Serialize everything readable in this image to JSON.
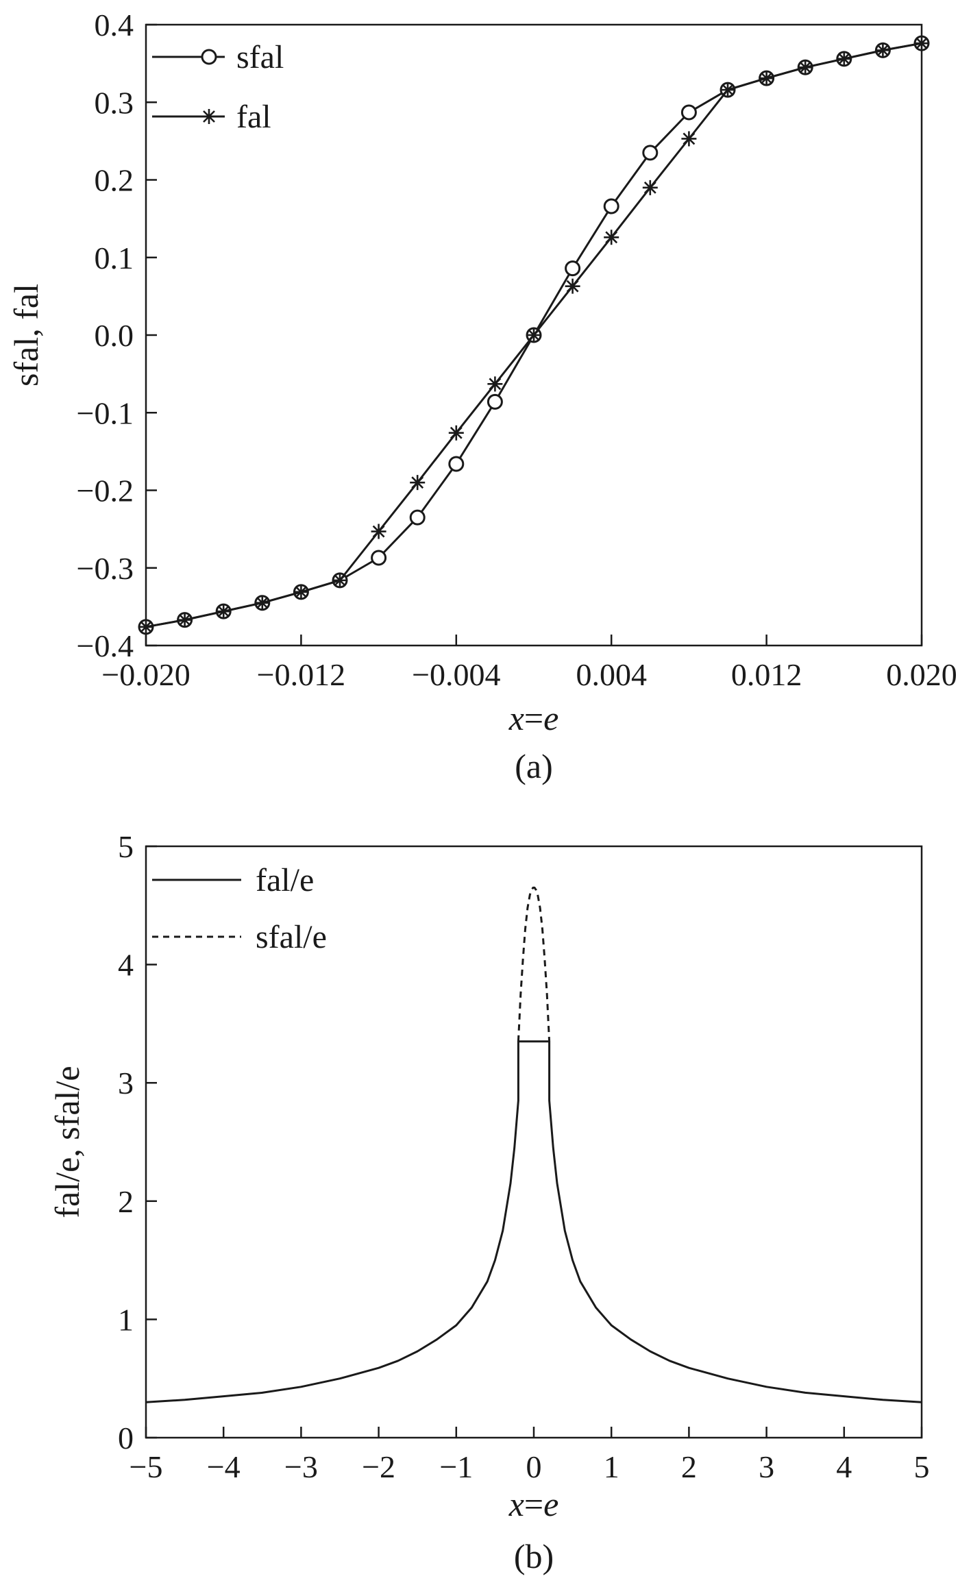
{
  "chart_data": [
    {
      "type": "line",
      "caption": "(a)",
      "xlabel_parts": [
        "x",
        "=",
        "e"
      ],
      "ylabel": "sfal, fal",
      "xlim": [
        -0.02,
        0.02
      ],
      "ylim": [
        -0.4,
        0.4
      ],
      "xticks": [
        -0.02,
        -0.012,
        -0.004,
        0.004,
        0.012,
        0.02
      ],
      "xtick_labels": [
        "−0.020",
        "−0.012",
        "−0.004",
        "0.004",
        "0.012",
        "0.020"
      ],
      "yticks": [
        -0.4,
        -0.3,
        -0.2,
        -0.1,
        0.0,
        0.1,
        0.2,
        0.3,
        0.4
      ],
      "ytick_labels": [
        "−0.4",
        "−0.3",
        "−0.2",
        "−0.1",
        "0.0",
        "0.1",
        "0.2",
        "0.3",
        "0.4"
      ],
      "grid": false,
      "legend_position": "top-left",
      "series": [
        {
          "name": "sfal",
          "marker": "circle",
          "x": [
            -0.02,
            -0.018,
            -0.016,
            -0.014,
            -0.012,
            -0.01,
            -0.008,
            -0.006,
            -0.004,
            -0.002,
            0.0,
            0.002,
            0.004,
            0.006,
            0.008,
            0.01,
            0.012,
            0.014,
            0.016,
            0.018,
            0.02
          ],
          "y": [
            -0.376,
            -0.367,
            -0.356,
            -0.345,
            -0.331,
            -0.316,
            -0.287,
            -0.235,
            -0.166,
            -0.086,
            0.0,
            0.086,
            0.166,
            0.235,
            0.287,
            0.316,
            0.331,
            0.345,
            0.356,
            0.367,
            0.376
          ]
        },
        {
          "name": "fal",
          "marker": "asterisk",
          "x": [
            -0.02,
            -0.018,
            -0.016,
            -0.014,
            -0.012,
            -0.01,
            -0.008,
            -0.006,
            -0.004,
            -0.002,
            0.0,
            0.002,
            0.004,
            0.006,
            0.008,
            0.01,
            0.012,
            0.014,
            0.016,
            0.018,
            0.02
          ],
          "y": [
            -0.376,
            -0.367,
            -0.356,
            -0.345,
            -0.331,
            -0.316,
            -0.253,
            -0.19,
            -0.126,
            -0.063,
            0.0,
            0.063,
            0.126,
            0.19,
            0.253,
            0.316,
            0.331,
            0.345,
            0.356,
            0.367,
            0.376
          ]
        }
      ]
    },
    {
      "type": "line",
      "caption": "(b)",
      "xlabel_parts": [
        "x",
        "=",
        "e"
      ],
      "ylabel": "fal/e, sfal/e",
      "xlim": [
        -5,
        5
      ],
      "ylim": [
        0,
        5
      ],
      "xticks": [
        -5,
        -4,
        -3,
        -2,
        -1,
        0,
        1,
        2,
        3,
        4,
        5
      ],
      "xtick_labels": [
        "−5",
        "−4",
        "−3",
        "−2",
        "−1",
        "0",
        "1",
        "2",
        "3",
        "4",
        "5"
      ],
      "yticks": [
        0,
        1,
        2,
        3,
        4,
        5
      ],
      "ytick_labels": [
        "0",
        "1",
        "2",
        "3",
        "4",
        "5"
      ],
      "grid": false,
      "legend_position": "top-left",
      "series": [
        {
          "name": "fal/e",
          "style": "solid",
          "x": [
            -5,
            -4.5,
            -4,
            -3.5,
            -3,
            -2.5,
            -2,
            -1.75,
            -1.5,
            -1.25,
            -1,
            -0.8,
            -0.6,
            -0.5,
            -0.4,
            -0.3,
            -0.25,
            -0.2,
            -0.2,
            0.2,
            0.2,
            0.25,
            0.3,
            0.4,
            0.5,
            0.6,
            0.8,
            1,
            1.25,
            1.5,
            1.75,
            2,
            2.5,
            3,
            3.5,
            4,
            4.5,
            5
          ],
          "y": [
            0.3,
            0.32,
            0.35,
            0.38,
            0.43,
            0.5,
            0.59,
            0.65,
            0.73,
            0.83,
            0.95,
            1.1,
            1.32,
            1.5,
            1.75,
            2.15,
            2.45,
            2.85,
            3.35,
            3.35,
            2.85,
            2.45,
            2.15,
            1.75,
            1.5,
            1.32,
            1.1,
            0.95,
            0.83,
            0.73,
            0.65,
            0.59,
            0.5,
            0.43,
            0.38,
            0.35,
            0.32,
            0.3
          ]
        },
        {
          "name": "sfal/e",
          "style": "dashed",
          "x": [
            -0.2,
            -0.17,
            -0.14,
            -0.11,
            -0.08,
            -0.05,
            -0.03,
            -0.01,
            0.0,
            0.01,
            0.03,
            0.05,
            0.08,
            0.11,
            0.14,
            0.17,
            0.2
          ],
          "y": [
            3.35,
            3.75,
            4.05,
            4.3,
            4.48,
            4.59,
            4.63,
            4.65,
            4.65,
            4.65,
            4.63,
            4.59,
            4.48,
            4.3,
            4.05,
            3.75,
            3.35
          ]
        }
      ]
    }
  ]
}
